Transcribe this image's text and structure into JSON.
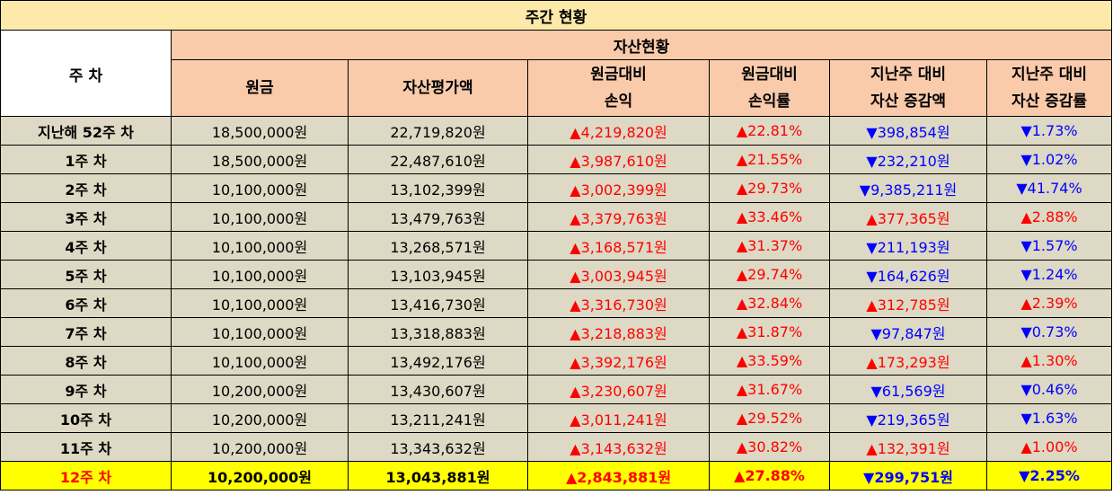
{
  "title": "주간 현황",
  "header": {
    "week": "주 차",
    "group": "자산현황",
    "columns": [
      {
        "line1": "원금",
        "line2": ""
      },
      {
        "line1": "자산평가액",
        "line2": ""
      },
      {
        "line1": "원금대비",
        "line2": "손익"
      },
      {
        "line1": "원금대비",
        "line2": "손익률"
      },
      {
        "line1": "지난주 대비",
        "line2": "자산 증감액"
      },
      {
        "line1": "지난주 대비",
        "line2": "자산 증감률"
      }
    ]
  },
  "rows": [
    {
      "week": "지난해 52주 차",
      "principal": "18,500,000원",
      "asset": "22,719,820원",
      "pl": "▲4,219,820원",
      "pl_rate": "▲22.81%",
      "chg": "▼398,854원",
      "chg_rate": "▼1.73%",
      "chg_up": false
    },
    {
      "week": "1주 차",
      "principal": "18,500,000원",
      "asset": "22,487,610원",
      "pl": "▲3,987,610원",
      "pl_rate": "▲21.55%",
      "chg": "▼232,210원",
      "chg_rate": "▼1.02%",
      "chg_up": false
    },
    {
      "week": "2주 차",
      "principal": "10,100,000원",
      "asset": "13,102,399원",
      "pl": "▲3,002,399원",
      "pl_rate": "▲29.73%",
      "chg": "▼9,385,211원",
      "chg_rate": "▼41.74%",
      "chg_up": false
    },
    {
      "week": "3주 차",
      "principal": "10,100,000원",
      "asset": "13,479,763원",
      "pl": "▲3,379,763원",
      "pl_rate": "▲33.46%",
      "chg": "▲377,365원",
      "chg_rate": "▲2.88%",
      "chg_up": true
    },
    {
      "week": "4주 차",
      "principal": "10,100,000원",
      "asset": "13,268,571원",
      "pl": "▲3,168,571원",
      "pl_rate": "▲31.37%",
      "chg": "▼211,193원",
      "chg_rate": "▼1.57%",
      "chg_up": false
    },
    {
      "week": "5주 차",
      "principal": "10,100,000원",
      "asset": "13,103,945원",
      "pl": "▲3,003,945원",
      "pl_rate": "▲29.74%",
      "chg": "▼164,626원",
      "chg_rate": "▼1.24%",
      "chg_up": false
    },
    {
      "week": "6주 차",
      "principal": "10,100,000원",
      "asset": "13,416,730원",
      "pl": "▲3,316,730원",
      "pl_rate": "▲32.84%",
      "chg": "▲312,785원",
      "chg_rate": "▲2.39%",
      "chg_up": true
    },
    {
      "week": "7주 차",
      "principal": "10,100,000원",
      "asset": "13,318,883원",
      "pl": "▲3,218,883원",
      "pl_rate": "▲31.87%",
      "chg": "▼97,847원",
      "chg_rate": "▼0.73%",
      "chg_up": false
    },
    {
      "week": "8주 차",
      "principal": "10,100,000원",
      "asset": "13,492,176원",
      "pl": "▲3,392,176원",
      "pl_rate": "▲33.59%",
      "chg": "▲173,293원",
      "chg_rate": "▲1.30%",
      "chg_up": true
    },
    {
      "week": "9주 차",
      "principal": "10,200,000원",
      "asset": "13,430,607원",
      "pl": "▲3,230,607원",
      "pl_rate": "▲31.67%",
      "chg": "▼61,569원",
      "chg_rate": "▼0.46%",
      "chg_up": false
    },
    {
      "week": "10주 차",
      "principal": "10,200,000원",
      "asset": "13,211,241원",
      "pl": "▲3,011,241원",
      "pl_rate": "▲29.52%",
      "chg": "▼219,365원",
      "chg_rate": "▼1.63%",
      "chg_up": false
    },
    {
      "week": "11주 차",
      "principal": "10,200,000원",
      "asset": "13,343,632원",
      "pl": "▲3,143,632원",
      "pl_rate": "▲30.82%",
      "chg": "▲132,391원",
      "chg_rate": "▲1.00%",
      "chg_up": true
    },
    {
      "week": "12주 차",
      "principal": "10,200,000원",
      "asset": "13,043,881원",
      "pl": "▲2,843,881원",
      "pl_rate": "▲27.88%",
      "chg": "▼299,751원",
      "chg_rate": "▼2.25%",
      "chg_up": false
    }
  ],
  "colors": {
    "title_bg": "#fde9a9",
    "header_bg": "#f9cbab",
    "row_bg": "#ddd9c4",
    "current_row_bg": "#ffff00",
    "up": "#ff0000",
    "down": "#0000ff"
  }
}
